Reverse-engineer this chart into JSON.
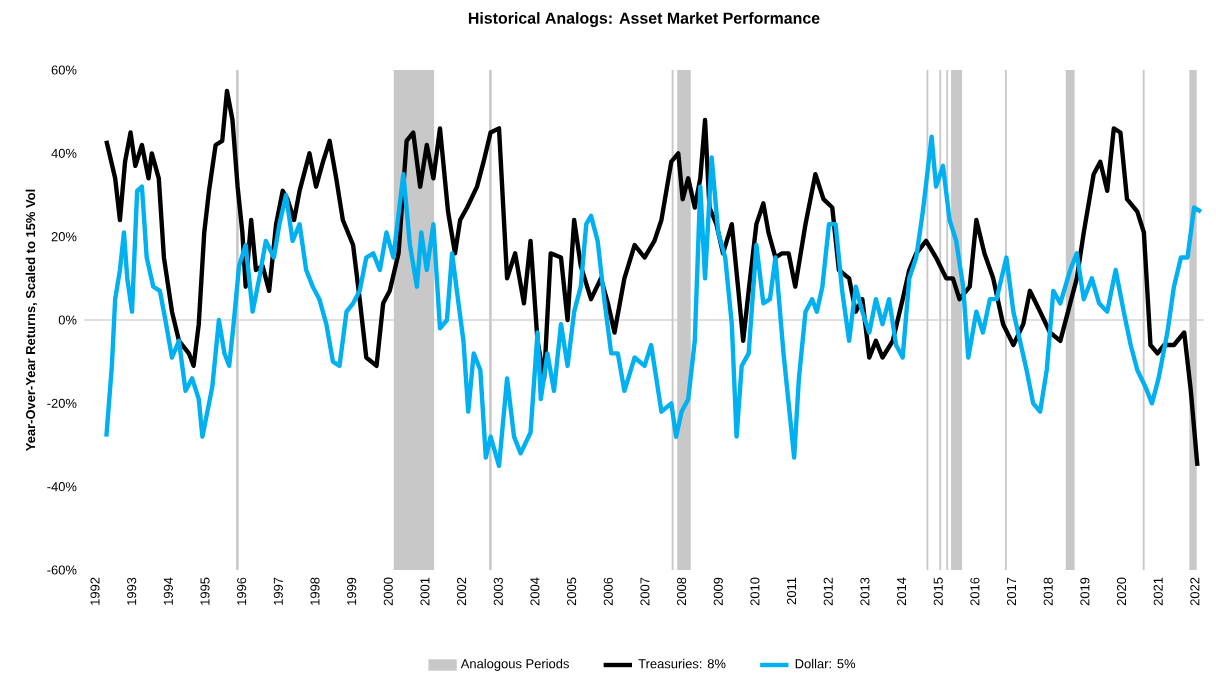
{
  "chart_data": {
    "type": "line",
    "title": "Historical Analogs: Asset Market Performance",
    "ylabel": "Year-Over-Year Returns, Scaled to 15% Vol",
    "xlim": [
      1991.7,
      2022.25
    ],
    "ylim": [
      -60,
      60
    ],
    "xticks": [
      1992,
      1993,
      1994,
      1995,
      1996,
      1997,
      1998,
      1999,
      2000,
      2001,
      2002,
      2003,
      2004,
      2005,
      2006,
      2007,
      2008,
      2009,
      2010,
      2011,
      2012,
      2013,
      2014,
      2015,
      2016,
      2017,
      2018,
      2019,
      2020,
      2021,
      2022
    ],
    "yticks": [
      {
        "value": -60,
        "label": "-60%"
      },
      {
        "value": -40,
        "label": "-40%"
      },
      {
        "value": -20,
        "label": "-20%"
      },
      {
        "value": 0,
        "label": "0%"
      },
      {
        "value": 20,
        "label": "20%"
      },
      {
        "value": 40,
        "label": "40%"
      },
      {
        "value": 60,
        "label": "60%"
      }
    ],
    "legend": "bottom",
    "bands": [
      {
        "axis": "x",
        "from": 2000.15,
        "to": 2001.25,
        "label": "Analogous Periods",
        "color": "#c8c8c8"
      },
      {
        "axis": "x",
        "from": 1995.85,
        "to": 1995.92,
        "color": "#c8c8c8"
      },
      {
        "axis": "x",
        "from": 2002.75,
        "to": 2002.82,
        "color": "#c8c8c8"
      },
      {
        "axis": "x",
        "from": 2007.73,
        "to": 2007.78,
        "color": "#c8c8c8"
      },
      {
        "axis": "x",
        "from": 2007.88,
        "to": 2008.25,
        "color": "#c8c8c8"
      },
      {
        "axis": "x",
        "from": 2014.68,
        "to": 2014.73,
        "color": "#c8c8c8"
      },
      {
        "axis": "x",
        "from": 2015.03,
        "to": 2015.08,
        "color": "#c8c8c8"
      },
      {
        "axis": "x",
        "from": 2015.22,
        "to": 2015.27,
        "color": "#c8c8c8"
      },
      {
        "axis": "x",
        "from": 2015.35,
        "to": 2015.65,
        "color": "#c8c8c8"
      },
      {
        "axis": "x",
        "from": 2016.82,
        "to": 2016.87,
        "color": "#c8c8c8"
      },
      {
        "axis": "x",
        "from": 2018.48,
        "to": 2018.72,
        "color": "#c8c8c8"
      },
      {
        "axis": "x",
        "from": 2020.58,
        "to": 2020.63,
        "color": "#c8c8c8"
      },
      {
        "axis": "x",
        "from": 2021.85,
        "to": 2022.05,
        "color": "#c8c8c8"
      }
    ],
    "series": [
      {
        "name": "Treasuries: 8%",
        "color": "#000000",
        "x": [
          1992.31,
          1992.55,
          1992.68,
          1992.82,
          1992.97,
          1993.1,
          1993.28,
          1993.46,
          1993.55,
          1993.74,
          1993.88,
          1994.1,
          1994.29,
          1994.56,
          1994.69,
          1994.83,
          1994.98,
          1995.11,
          1995.29,
          1995.47,
          1995.6,
          1995.75,
          1995.89,
          1996.02,
          1996.11,
          1996.26,
          1996.39,
          1996.57,
          1996.75,
          1996.94,
          1997.12,
          1997.25,
          1997.43,
          1997.58,
          1997.85,
          1998.03,
          1998.22,
          1998.4,
          1998.58,
          1998.76,
          1999.04,
          1999.22,
          1999.4,
          1999.68,
          1999.86,
          2000.04,
          2000.28,
          2000.5,
          2000.68,
          2000.87,
          2001.05,
          2001.23,
          2001.41,
          2001.63,
          2001.82,
          2001.96,
          2002.15,
          2002.42,
          2002.6,
          2002.79,
          2003.02,
          2003.24,
          2003.46,
          2003.7,
          2003.88,
          2004.07,
          2004.25,
          2004.43,
          2004.71,
          2004.89,
          2005.07,
          2005.25,
          2005.53,
          2005.8,
          2005.99,
          2006.17,
          2006.44,
          2006.72,
          2006.99,
          2007.26,
          2007.45,
          2007.72,
          2007.91,
          2008.03,
          2008.18,
          2008.36,
          2008.51,
          2008.64,
          2008.76,
          2008.95,
          2009.13,
          2009.37,
          2009.55,
          2009.68,
          2009.83,
          2010.04,
          2010.23,
          2010.37,
          2010.56,
          2010.74,
          2010.92,
          2011.1,
          2011.38,
          2011.65,
          2011.87,
          2012.11,
          2012.29,
          2012.57,
          2012.75,
          2012.93,
          2013.12,
          2013.3,
          2013.48,
          2013.76,
          2014.03,
          2014.21,
          2014.4,
          2014.67,
          2014.94,
          2015.22,
          2015.4,
          2015.58,
          2015.86,
          2016.04,
          2016.26,
          2016.5,
          2016.77,
          2017.05,
          2017.32,
          2017.5,
          2017.78,
          2018.05,
          2018.33,
          2018.6,
          2018.78,
          2018.97,
          2019.24,
          2019.42,
          2019.61,
          2019.79,
          2019.97,
          2020.15,
          2020.43,
          2020.61,
          2020.79,
          2020.98,
          2021.16,
          2021.43,
          2021.71,
          2021.89,
          2022.07
        ],
        "values": [
          43,
          34,
          24,
          38,
          45,
          37,
          42,
          34,
          40,
          34,
          15,
          2,
          -5,
          -8,
          -11,
          -1,
          21,
          31,
          42,
          43,
          55,
          48,
          32,
          21,
          8,
          24,
          12,
          13,
          7,
          23,
          31,
          29,
          24,
          31,
          40,
          32,
          38,
          43,
          34,
          24,
          18,
          5,
          -9,
          -11,
          4,
          7,
          16,
          43,
          45,
          32,
          42,
          34,
          46,
          26,
          16,
          24,
          27,
          32,
          38,
          45,
          46,
          10,
          16,
          4,
          19,
          -5,
          -14,
          16,
          15,
          0,
          24,
          13,
          5,
          10,
          4,
          -3,
          10,
          18,
          15,
          19,
          24,
          38,
          40,
          29,
          34,
          27,
          34,
          48,
          27,
          23,
          16,
          23,
          7,
          -5,
          7,
          23,
          28,
          21,
          15,
          16,
          16,
          8,
          23,
          35,
          29,
          27,
          12,
          10,
          2,
          5,
          -9,
          -5,
          -9,
          -5,
          5,
          12,
          16,
          19,
          15,
          10,
          10,
          5,
          8,
          24,
          16,
          10,
          -1,
          -6,
          -1,
          7,
          2,
          -3,
          -5,
          4,
          10,
          21,
          35,
          38,
          31,
          46,
          45,
          29,
          26,
          21,
          -6,
          -8,
          -6,
          -6,
          -3,
          -17,
          -35
        ]
      },
      {
        "name": "Dollar: 5%",
        "color": "#00b0f0",
        "x": [
          1992.31,
          1992.46,
          1992.55,
          1992.68,
          1992.79,
          1992.88,
          1993.01,
          1993.15,
          1993.28,
          1993.41,
          1993.59,
          1993.77,
          1993.92,
          1994.1,
          1994.29,
          1994.47,
          1994.65,
          1994.83,
          1994.93,
          1995.11,
          1995.2,
          1995.38,
          1995.53,
          1995.66,
          1995.78,
          1995.93,
          1996.11,
          1996.3,
          1996.48,
          1996.66,
          1996.88,
          1997.03,
          1997.21,
          1997.39,
          1997.58,
          1997.76,
          1997.94,
          1998.12,
          1998.31,
          1998.49,
          1998.67,
          1998.86,
          1999.04,
          1999.22,
          1999.4,
          1999.59,
          1999.77,
          1999.95,
          2000.14,
          2000.41,
          2000.59,
          2000.78,
          2000.9,
          2001.05,
          2001.23,
          2001.41,
          2001.6,
          2001.74,
          2001.87,
          2002.05,
          2002.18,
          2002.33,
          2002.51,
          2002.66,
          2002.79,
          2003.02,
          2003.24,
          2003.43,
          2003.61,
          2003.88,
          2004.07,
          2004.16,
          2004.34,
          2004.52,
          2004.71,
          2004.89,
          2005.07,
          2005.25,
          2005.4,
          2005.53,
          2005.71,
          2005.89,
          2006.08,
          2006.26,
          2006.44,
          2006.72,
          2006.99,
          2007.17,
          2007.45,
          2007.72,
          2007.85,
          2008.0,
          2008.18,
          2008.36,
          2008.51,
          2008.64,
          2008.82,
          2009.0,
          2009.19,
          2009.37,
          2009.5,
          2009.64,
          2009.83,
          2010.04,
          2010.23,
          2010.41,
          2010.56,
          2010.78,
          2010.92,
          2011.07,
          2011.2,
          2011.38,
          2011.56,
          2011.69,
          2011.84,
          2012.02,
          2012.2,
          2012.38,
          2012.57,
          2012.75,
          2012.93,
          2013.12,
          2013.3,
          2013.48,
          2013.66,
          2013.85,
          2014.03,
          2014.21,
          2014.4,
          2014.58,
          2014.82,
          2014.94,
          2015.13,
          2015.31,
          2015.49,
          2015.68,
          2015.82,
          2016.04,
          2016.22,
          2016.41,
          2016.59,
          2016.86,
          2017.05,
          2017.23,
          2017.41,
          2017.59,
          2017.78,
          2017.96,
          2018.14,
          2018.33,
          2018.6,
          2018.78,
          2018.97,
          2019.19,
          2019.39,
          2019.61,
          2019.84,
          2020.06,
          2020.25,
          2020.43,
          2020.65,
          2020.83,
          2021.01,
          2021.25,
          2021.43,
          2021.62,
          2021.8,
          2021.98,
          2022.17
        ],
        "values": [
          -28,
          -11,
          5,
          12,
          21,
          10,
          2,
          31,
          32,
          15,
          8,
          7,
          0,
          -9,
          -5,
          -17,
          -14,
          -19,
          -28,
          -20,
          -16,
          0,
          -8,
          -11,
          -1,
          13,
          18,
          2,
          10,
          19,
          15,
          23,
          30,
          19,
          23,
          12,
          8,
          5,
          -1,
          -10,
          -11,
          2,
          4,
          7,
          15,
          16,
          12,
          21,
          15,
          35,
          18,
          8,
          21,
          12,
          23,
          -2,
          0,
          16,
          7,
          -5,
          -22,
          -8,
          -12,
          -33,
          -28,
          -35,
          -14,
          -28,
          -32,
          -27,
          -3,
          -19,
          -8,
          -17,
          -1,
          -11,
          2,
          8,
          23,
          25,
          19,
          5,
          -8,
          -8,
          -17,
          -9,
          -11,
          -6,
          -22,
          -20,
          -28,
          -22,
          -19,
          -5,
          32,
          10,
          39,
          21,
          15,
          -1,
          -28,
          -11,
          -8,
          18,
          4,
          5,
          15,
          -8,
          -20,
          -33,
          -14,
          2,
          5,
          2,
          8,
          23,
          23,
          7,
          -5,
          8,
          2,
          -3,
          5,
          -1,
          5,
          -6,
          -9,
          10,
          15,
          26,
          44,
          32,
          37,
          24,
          19,
          8,
          -9,
          2,
          -3,
          5,
          5,
          15,
          2,
          -5,
          -12,
          -20,
          -22,
          -12,
          7,
          4,
          12,
          16,
          5,
          10,
          4,
          2,
          12,
          2,
          -6,
          -12,
          -16,
          -20,
          -14,
          -3,
          8,
          15,
          15,
          27,
          26
        ]
      }
    ]
  }
}
